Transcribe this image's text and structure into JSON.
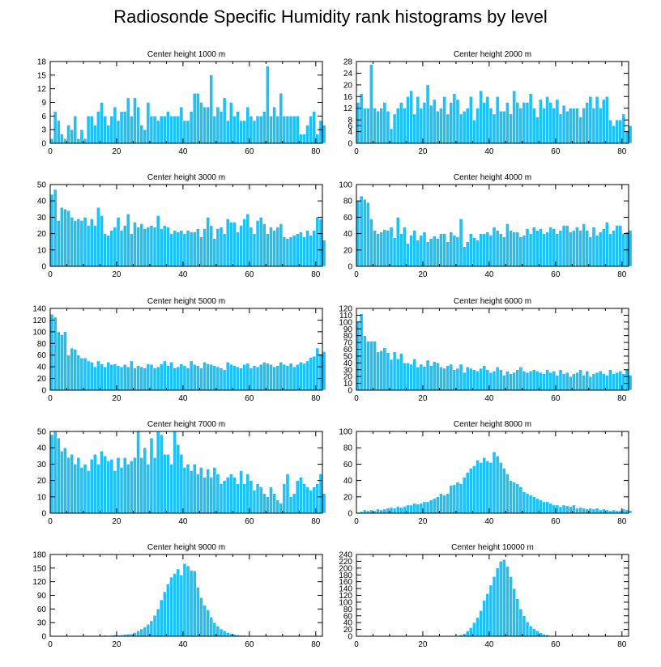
{
  "title": "Radiosonde Specific Humidity rank histograms by level",
  "colors": {
    "bar": "#1ec0f5",
    "bar_edge": "#ffffff",
    "axis": "#000000"
  },
  "chart_data": [
    {
      "type": "bar",
      "title": "Center height 1000 m",
      "xlim": [
        0,
        82
      ],
      "ylim": [
        0,
        18
      ],
      "xticks": [
        0,
        20,
        40,
        60,
        80
      ],
      "yticks": [
        0,
        3,
        6,
        9,
        12,
        15,
        18
      ],
      "values": [
        1,
        7,
        5,
        2,
        1,
        4,
        3,
        6,
        1,
        3,
        1,
        6,
        6,
        4,
        7,
        9,
        6,
        4,
        6,
        8,
        5,
        7,
        7,
        10,
        6,
        10,
        8,
        4,
        3,
        9,
        6,
        6,
        5,
        6,
        6,
        7,
        6,
        6,
        6,
        8,
        5,
        5,
        7,
        11,
        11,
        9,
        8,
        8,
        15,
        6,
        8,
        7,
        10,
        5,
        9,
        6,
        7,
        5,
        5,
        8,
        6,
        5,
        6,
        6,
        7,
        17,
        6,
        8,
        6,
        11,
        6,
        6,
        6,
        6,
        6,
        2,
        2,
        4,
        6,
        7,
        2,
        5,
        4
      ]
    },
    {
      "type": "bar",
      "title": "Center height 2000 m",
      "xlim": [
        0,
        82
      ],
      "ylim": [
        0,
        28
      ],
      "xticks": [
        0,
        20,
        40,
        60,
        80
      ],
      "yticks": [
        0,
        4,
        6,
        8,
        12,
        16,
        20,
        24,
        28
      ],
      "values": [
        14,
        17,
        12,
        12,
        27,
        12,
        11,
        12,
        14,
        11,
        5,
        10,
        12,
        14,
        12,
        16,
        18,
        10,
        16,
        12,
        14,
        20,
        13,
        15,
        11,
        12,
        16,
        10,
        14,
        17,
        15,
        10,
        11,
        12,
        16,
        8,
        12,
        18,
        14,
        16,
        12,
        10,
        16,
        11,
        11,
        14,
        10,
        18,
        14,
        12,
        14,
        14,
        17,
        12,
        9,
        15,
        12,
        16,
        14,
        12,
        15,
        10,
        13,
        11,
        12,
        12,
        12,
        9,
        12,
        14,
        16,
        12,
        16,
        12,
        15,
        16,
        8,
        6,
        8,
        8,
        10,
        4,
        6
      ]
    },
    {
      "type": "bar",
      "title": "Center height 3000 m",
      "xlim": [
        0,
        82
      ],
      "ylim": [
        0,
        50
      ],
      "xticks": [
        0,
        20,
        40,
        60,
        80
      ],
      "yticks": [
        0,
        10,
        20,
        30,
        40,
        50
      ],
      "values": [
        44,
        47,
        28,
        36,
        35,
        34,
        30,
        28,
        29,
        28,
        30,
        25,
        29,
        25,
        36,
        31,
        20,
        19,
        22,
        24,
        30,
        22,
        25,
        32,
        20,
        27,
        24,
        26,
        23,
        24,
        25,
        24,
        31,
        23,
        25,
        24,
        20,
        22,
        21,
        22,
        20,
        22,
        21,
        21,
        23,
        18,
        23,
        30,
        25,
        17,
        23,
        24,
        20,
        29,
        27,
        27,
        21,
        25,
        29,
        32,
        24,
        20,
        28,
        30,
        26,
        20,
        24,
        22,
        24,
        26,
        18,
        17,
        18,
        19,
        20,
        21,
        18,
        22,
        19,
        22,
        30,
        29,
        16
      ]
    },
    {
      "type": "bar",
      "title": "Center height 4000 m",
      "xlim": [
        0,
        82
      ],
      "ylim": [
        0,
        100
      ],
      "xticks": [
        0,
        20,
        40,
        60,
        80
      ],
      "yticks": [
        0,
        20,
        40,
        60,
        80,
        100
      ],
      "values": [
        80,
        86,
        82,
        78,
        58,
        44,
        40,
        42,
        45,
        44,
        48,
        35,
        60,
        40,
        48,
        28,
        38,
        44,
        32,
        38,
        42,
        30,
        34,
        37,
        34,
        40,
        40,
        30,
        42,
        38,
        36,
        58,
        24,
        30,
        40,
        35,
        32,
        40,
        40,
        42,
        38,
        48,
        44,
        40,
        36,
        52,
        44,
        42,
        42,
        36,
        38,
        46,
        40,
        48,
        44,
        46,
        40,
        42,
        48,
        46,
        40,
        44,
        50,
        50,
        42,
        44,
        48,
        44,
        52,
        44,
        36,
        48,
        38,
        42,
        46,
        54,
        40,
        44,
        50,
        50,
        40,
        42,
        44
      ]
    },
    {
      "type": "bar",
      "title": "Center height 5000 m",
      "xlim": [
        0,
        82
      ],
      "ylim": [
        0,
        140
      ],
      "xticks": [
        0,
        20,
        40,
        60,
        80
      ],
      "yticks": [
        0,
        20,
        40,
        60,
        80,
        100,
        120,
        140
      ],
      "values": [
        130,
        125,
        100,
        95,
        100,
        60,
        72,
        70,
        60,
        55,
        55,
        50,
        48,
        40,
        50,
        45,
        40,
        48,
        44,
        45,
        42,
        40,
        44,
        40,
        50,
        38,
        42,
        40,
        38,
        45,
        44,
        38,
        40,
        45,
        50,
        42,
        48,
        38,
        40,
        45,
        42,
        38,
        50,
        44,
        42,
        38,
        48,
        45,
        44,
        42,
        40,
        38,
        35,
        48,
        44,
        42,
        40,
        38,
        44,
        46,
        38,
        42,
        40,
        44,
        48,
        46,
        44,
        40,
        42,
        48,
        44,
        42,
        46,
        40,
        44,
        48,
        46,
        50,
        56,
        58,
        72,
        62,
        66
      ]
    },
    {
      "type": "bar",
      "title": "Center height 6000 m",
      "xlim": [
        0,
        82
      ],
      "ylim": [
        0,
        120
      ],
      "xticks": [
        0,
        20,
        40,
        60,
        80
      ],
      "yticks": [
        0,
        10,
        20,
        30,
        40,
        50,
        60,
        70,
        80,
        90,
        100,
        110,
        120
      ],
      "values": [
        100,
        112,
        80,
        72,
        72,
        72,
        56,
        58,
        62,
        55,
        45,
        56,
        46,
        54,
        40,
        40,
        38,
        46,
        34,
        38,
        35,
        44,
        36,
        42,
        40,
        34,
        32,
        36,
        38,
        30,
        32,
        38,
        26,
        34,
        32,
        30,
        28,
        32,
        36,
        30,
        26,
        28,
        34,
        30,
        22,
        28,
        24,
        26,
        30,
        34,
        28,
        26,
        28,
        30,
        28,
        26,
        24,
        30,
        26,
        28,
        22,
        30,
        24,
        26,
        20,
        24,
        26,
        30,
        22,
        28,
        20,
        24,
        26,
        28,
        24,
        22,
        30,
        24,
        26,
        28,
        24,
        30,
        22
      ]
    },
    {
      "type": "bar",
      "title": "Center height 7000 m",
      "xlim": [
        0,
        82
      ],
      "ylim": [
        0,
        50
      ],
      "xticks": [
        0,
        20,
        40,
        60,
        80
      ],
      "yticks": [
        0,
        10,
        20,
        30,
        40,
        50
      ],
      "values": [
        48,
        50,
        46,
        38,
        40,
        34,
        36,
        30,
        34,
        28,
        30,
        26,
        33,
        36,
        30,
        38,
        35,
        32,
        33,
        26,
        34,
        28,
        34,
        30,
        32,
        34,
        50,
        34,
        40,
        30,
        46,
        34,
        50,
        48,
        36,
        36,
        30,
        50,
        42,
        36,
        28,
        30,
        26,
        30,
        24,
        28,
        22,
        27,
        22,
        28,
        24,
        18,
        20,
        22,
        24,
        22,
        18,
        26,
        18,
        24,
        20,
        14,
        18,
        16,
        12,
        10,
        16,
        12,
        8,
        6,
        18,
        24,
        10,
        12,
        20,
        22,
        18,
        16,
        14,
        16,
        18,
        24,
        12
      ]
    },
    {
      "type": "bar",
      "title": "Center height 8000 m",
      "xlim": [
        0,
        82
      ],
      "ylim": [
        0,
        100
      ],
      "xticks": [
        0,
        20,
        40,
        60,
        80
      ],
      "yticks": [
        0,
        20,
        40,
        60,
        80,
        100
      ],
      "values": [
        1,
        2,
        4,
        3,
        4,
        3,
        5,
        4,
        5,
        6,
        7,
        6,
        8,
        7,
        8,
        10,
        10,
        12,
        11,
        12,
        14,
        14,
        16,
        18,
        20,
        24,
        22,
        24,
        34,
        35,
        38,
        36,
        44,
        50,
        55,
        58,
        65,
        62,
        68,
        64,
        62,
        75,
        70,
        62,
        55,
        48,
        40,
        38,
        36,
        32,
        26,
        24,
        22,
        20,
        18,
        16,
        14,
        14,
        12,
        10,
        10,
        8,
        10,
        9,
        8,
        10,
        6,
        7,
        6,
        5,
        6,
        5,
        6,
        4,
        5,
        4,
        3,
        4,
        3,
        3,
        5,
        4,
        3
      ]
    },
    {
      "type": "bar",
      "title": "Center height 9000 m",
      "xlim": [
        0,
        82
      ],
      "ylim": [
        0,
        180
      ],
      "xticks": [
        0,
        20,
        40,
        60,
        80
      ],
      "yticks": [
        0,
        30,
        60,
        90,
        120,
        150,
        180
      ],
      "values": [
        0,
        0,
        0,
        0,
        0,
        0,
        0,
        0,
        0,
        0,
        0,
        0,
        0,
        0,
        0,
        1,
        2,
        1,
        2,
        3,
        2,
        3,
        4,
        5,
        5,
        8,
        12,
        16,
        20,
        26,
        34,
        46,
        60,
        80,
        98,
        115,
        130,
        138,
        148,
        135,
        160,
        155,
        145,
        144,
        108,
        85,
        68,
        58,
        42,
        30,
        22,
        16,
        12,
        8,
        6,
        4,
        3,
        2,
        2,
        1,
        1,
        1,
        1,
        0,
        0,
        0,
        0,
        0,
        0,
        0,
        0,
        0,
        1,
        0,
        0,
        0,
        0,
        0,
        0,
        0,
        0,
        0,
        0
      ]
    },
    {
      "type": "bar",
      "title": "Center height 10000 m",
      "xlim": [
        0,
        82
      ],
      "ylim": [
        0,
        240
      ],
      "xticks": [
        0,
        20,
        40,
        60,
        80
      ],
      "yticks": [
        0,
        20,
        40,
        60,
        80,
        100,
        120,
        140,
        160,
        180,
        200,
        220,
        240
      ],
      "values": [
        0,
        0,
        0,
        0,
        0,
        0,
        0,
        0,
        0,
        0,
        0,
        0,
        0,
        0,
        0,
        0,
        0,
        0,
        0,
        0,
        0,
        0,
        0,
        0,
        0,
        0,
        0,
        0,
        0,
        1,
        2,
        4,
        8,
        15,
        25,
        40,
        55,
        75,
        105,
        125,
        150,
        175,
        200,
        220,
        225,
        205,
        175,
        140,
        110,
        80,
        60,
        42,
        30,
        22,
        16,
        10,
        6,
        4,
        2,
        2,
        1,
        0,
        0,
        0,
        0,
        0,
        0,
        0,
        0,
        0,
        0,
        0,
        0,
        0,
        0,
        0,
        0,
        0,
        0,
        0,
        0,
        0,
        0
      ]
    }
  ]
}
